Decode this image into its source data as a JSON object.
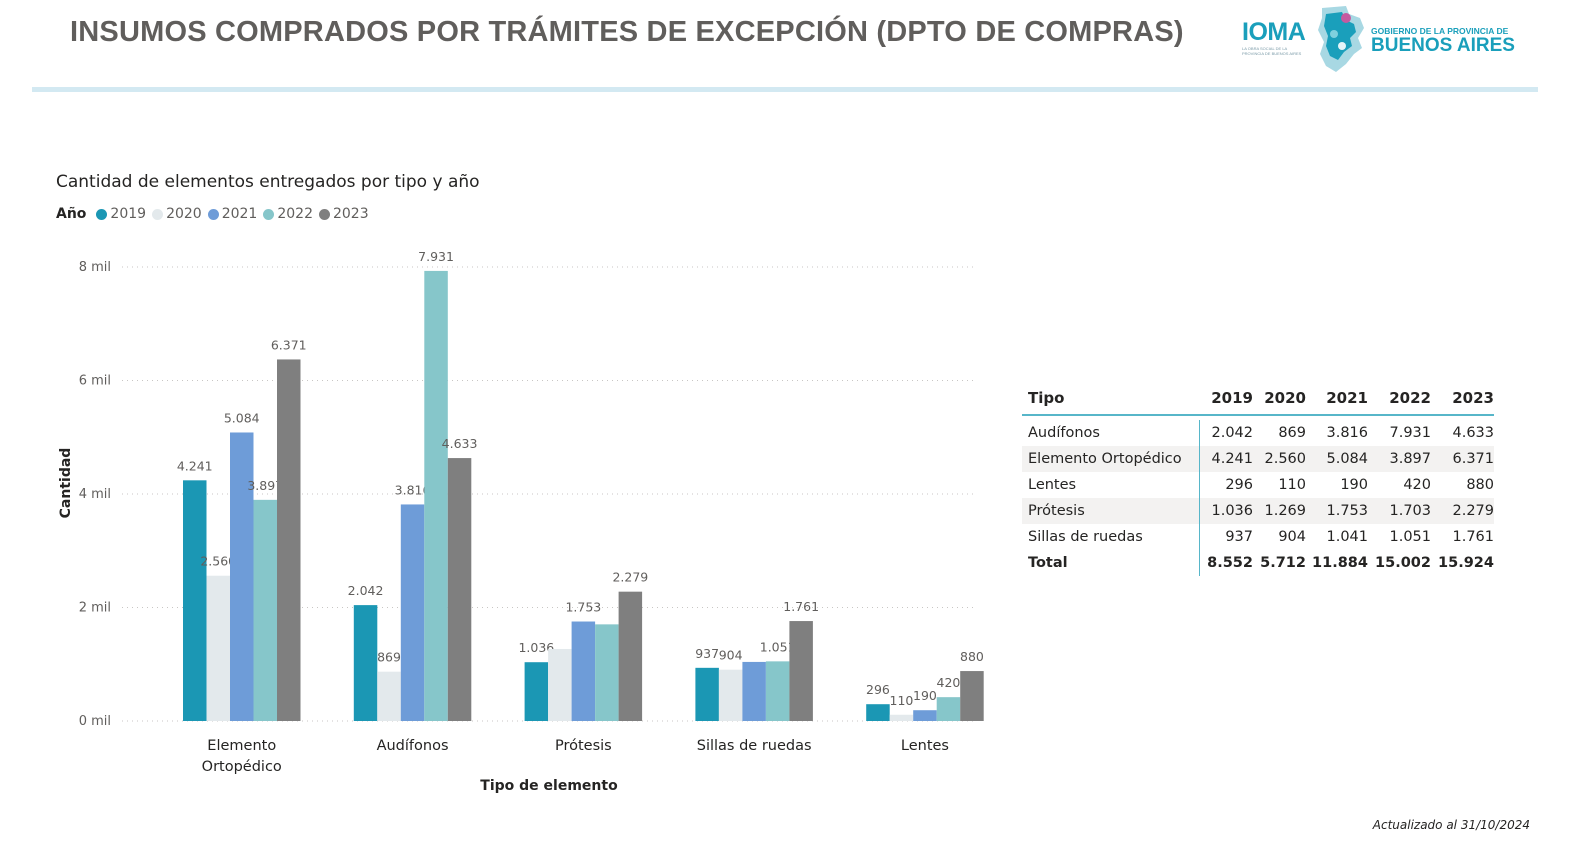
{
  "header": {
    "title": "INSUMOS COMPRADOS POR TRÁMITES DE EXCEPCIÓN (DPTO DE COMPRAS)",
    "ioma_logo": "IOMA",
    "ioma_subtitle": "LA OBRA SOCIAL DE LA PROVINCIA DE BUENOS AIRES",
    "gov_small": "GOBIERNO DE LA PROVINCIA DE",
    "gov_big": "BUENOS AIRES"
  },
  "legend": {
    "title": "Año",
    "items": [
      {
        "label": "2019",
        "color": "#1b97b4"
      },
      {
        "label": "2020",
        "color": "#e3e9ec"
      },
      {
        "label": "2021",
        "color": "#6e9cd8"
      },
      {
        "label": "2022",
        "color": "#86c6ca"
      },
      {
        "label": "2023",
        "color": "#7f7f7f"
      }
    ]
  },
  "chart_data": {
    "type": "bar",
    "title": "Cantidad de elementos entregados por tipo y año",
    "xlabel": "Tipo de elemento",
    "ylabel": "Cantidad",
    "ylim": [
      0,
      8000
    ],
    "yticks": [
      0,
      2000,
      4000,
      6000,
      8000
    ],
    "ytick_labels": [
      "0 mil",
      "2 mil",
      "4 mil",
      "6 mil",
      "8 mil"
    ],
    "grid": true,
    "legend_position": "top-left",
    "categories": [
      "Elemento Ortopédico",
      "Audífonos",
      "Prótesis",
      "Sillas de ruedas",
      "Lentes"
    ],
    "category_label_lines": [
      [
        "Elemento",
        "Ortopédico"
      ],
      [
        "Audífonos"
      ],
      [
        "Prótesis"
      ],
      [
        "Sillas de ruedas"
      ],
      [
        "Lentes"
      ]
    ],
    "series": [
      {
        "name": "2019",
        "color": "#1b97b4",
        "values": [
          4241,
          2042,
          1036,
          937,
          296
        ],
        "labels": [
          "4.241",
          "2.042",
          "1.036",
          "937",
          "296"
        ]
      },
      {
        "name": "2020",
        "color": "#e3e9ec",
        "values": [
          2560,
          869,
          1269,
          904,
          110
        ],
        "labels": [
          "2.560",
          "869",
          "",
          "904",
          "110"
        ]
      },
      {
        "name": "2021",
        "color": "#6e9cd8",
        "values": [
          5084,
          3816,
          1753,
          1041,
          190
        ],
        "labels": [
          "5.084",
          "3.816",
          "1.753",
          "",
          "190"
        ]
      },
      {
        "name": "2022",
        "color": "#86c6ca",
        "values": [
          3897,
          7931,
          1703,
          1051,
          420
        ],
        "labels": [
          "3.897",
          "7.931",
          "",
          "1.051",
          "420"
        ]
      },
      {
        "name": "2023",
        "color": "#7f7f7f",
        "values": [
          6371,
          4633,
          2279,
          1761,
          880
        ],
        "labels": [
          "6.371",
          "4.633",
          "2.279",
          "1.761",
          "880"
        ]
      }
    ]
  },
  "table": {
    "header_tipo": "Tipo",
    "columns": [
      "2019",
      "2020",
      "2021",
      "2022",
      "2023"
    ],
    "rows": [
      {
        "tipo": "Audífonos",
        "values": [
          "2.042",
          "869",
          "3.816",
          "7.931",
          "4.633"
        ]
      },
      {
        "tipo": "Elemento Ortopédico",
        "values": [
          "4.241",
          "2.560",
          "5.084",
          "3.897",
          "6.371"
        ]
      },
      {
        "tipo": "Lentes",
        "values": [
          "296",
          "110",
          "190",
          "420",
          "880"
        ]
      },
      {
        "tipo": "Prótesis",
        "values": [
          "1.036",
          "1.269",
          "1.753",
          "1.703",
          "2.279"
        ]
      },
      {
        "tipo": "Sillas de ruedas",
        "values": [
          "937",
          "904",
          "1.041",
          "1.051",
          "1.761"
        ]
      }
    ],
    "total": {
      "tipo": "Total",
      "values": [
        "8.552",
        "5.712",
        "11.884",
        "15.002",
        "15.924"
      ]
    }
  },
  "footer": {
    "updated": "Actualizado al 31/10/2024"
  }
}
